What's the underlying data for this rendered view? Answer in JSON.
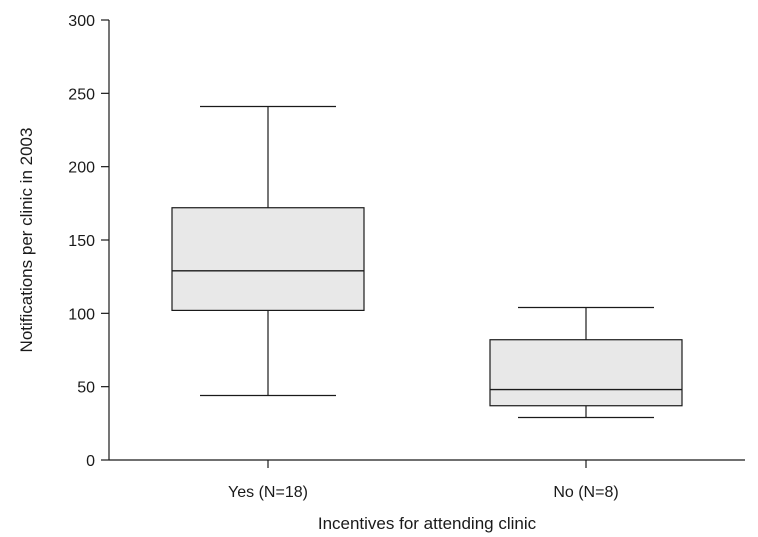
{
  "chart_data": {
    "type": "box",
    "title": "",
    "xlabel": "Incentives for attending clinic",
    "ylabel": "Notifications per clinic in 2003",
    "ylim": [
      0,
      300
    ],
    "yticks": [
      0,
      50,
      100,
      150,
      200,
      250,
      300
    ],
    "grid": false,
    "legend": "none",
    "box_fill": "#e8e8e8",
    "line_color": "#1a1a1a",
    "categories": [
      "Yes (N=18)",
      "No (N=8)"
    ],
    "boxes": [
      {
        "category": "Yes (N=18)",
        "min": 44,
        "q1": 102,
        "median": 129,
        "q3": 172,
        "max": 241
      },
      {
        "category": "No (N=8)",
        "min": 29,
        "q1": 37,
        "median": 48,
        "q3": 82,
        "max": 104
      }
    ]
  }
}
